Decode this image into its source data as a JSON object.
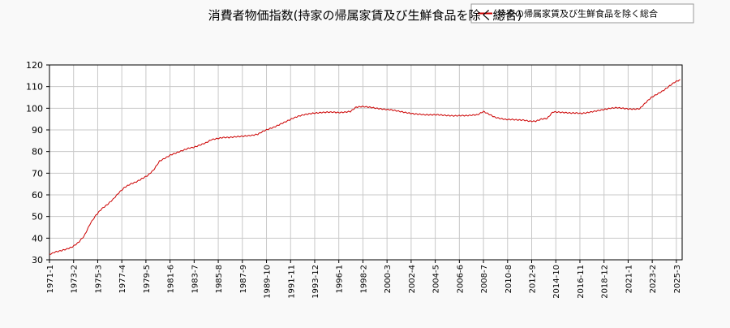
{
  "chart_data": {
    "type": "line",
    "title": "消費者物価指数(持家の帰属家賃及び生鮮食品を除く総合)",
    "xlabel": "",
    "ylabel": "",
    "ylim": [
      30,
      120
    ],
    "yticks": [
      30,
      40,
      50,
      60,
      70,
      80,
      90,
      100,
      110,
      120
    ],
    "x_tick_labels": [
      "1971-1",
      "1973-2",
      "1975-3",
      "1977-4",
      "1979-5",
      "1981-6",
      "1983-7",
      "1985-8",
      "1987-9",
      "1989-10",
      "1991-11",
      "1993-12",
      "1996-1",
      "1998-2",
      "2000-3",
      "2002-4",
      "2004-5",
      "2006-6",
      "2008-7",
      "2010-8",
      "2012-9",
      "2014-10",
      "2016-11",
      "2018-12",
      "2021-1",
      "2023-2",
      "2025-3"
    ],
    "grid": true,
    "legend_position": "top-right",
    "series": [
      {
        "name": "持家の帰属家賃及び生鮮食品を除く総合",
        "color": "#cc0000",
        "x": [
          "1971-1",
          "1971-7",
          "1972-1",
          "1972-7",
          "1973-1",
          "1973-7",
          "1974-1",
          "1974-7",
          "1975-1",
          "1975-7",
          "1976-1",
          "1976-7",
          "1977-1",
          "1977-7",
          "1978-1",
          "1978-7",
          "1979-1",
          "1979-7",
          "1980-1",
          "1980-7",
          "1981-1",
          "1981-7",
          "1982-1",
          "1982-7",
          "1983-1",
          "1983-7",
          "1984-1",
          "1984-7",
          "1985-1",
          "1985-7",
          "1986-1",
          "1986-7",
          "1987-1",
          "1987-7",
          "1988-1",
          "1988-7",
          "1989-1",
          "1989-7",
          "1990-1",
          "1990-7",
          "1991-1",
          "1991-7",
          "1992-1",
          "1992-7",
          "1993-1",
          "1993-7",
          "1994-1",
          "1994-7",
          "1995-1",
          "1995-7",
          "1996-1",
          "1996-7",
          "1997-1",
          "1997-7",
          "1998-1",
          "1998-7",
          "1999-1",
          "1999-7",
          "2000-1",
          "2000-7",
          "2001-1",
          "2001-7",
          "2002-1",
          "2002-7",
          "2003-1",
          "2003-7",
          "2004-1",
          "2004-7",
          "2005-1",
          "2005-7",
          "2006-1",
          "2006-7",
          "2007-1",
          "2007-7",
          "2008-1",
          "2008-7",
          "2009-1",
          "2009-7",
          "2010-1",
          "2010-7",
          "2011-1",
          "2011-7",
          "2012-1",
          "2012-7",
          "2013-1",
          "2013-7",
          "2014-1",
          "2014-7",
          "2015-1",
          "2015-7",
          "2016-1",
          "2016-7",
          "2017-1",
          "2017-7",
          "2018-1",
          "2018-7",
          "2019-1",
          "2019-7",
          "2020-1",
          "2020-7",
          "2021-1",
          "2021-7",
          "2022-1",
          "2022-7",
          "2023-1",
          "2023-7",
          "2024-1",
          "2024-7",
          "2025-1",
          "2025-7"
        ],
        "values": [
          32.5,
          33.6,
          34.2,
          35.0,
          36.0,
          38.0,
          41.0,
          46.5,
          50.5,
          53.5,
          55.5,
          58.0,
          61.0,
          63.5,
          65.0,
          66.0,
          67.5,
          69.0,
          71.5,
          75.5,
          77.0,
          78.5,
          79.5,
          80.5,
          81.5,
          82.0,
          83.0,
          84.0,
          85.5,
          86.0,
          86.5,
          86.5,
          86.8,
          87.0,
          87.2,
          87.5,
          88.0,
          89.5,
          90.5,
          91.5,
          92.8,
          94.0,
          95.3,
          96.3,
          97.0,
          97.5,
          97.8,
          98.0,
          98.2,
          98.2,
          98.0,
          98.2,
          98.5,
          100.5,
          100.8,
          100.6,
          100.2,
          99.8,
          99.5,
          99.3,
          98.8,
          98.3,
          97.8,
          97.4,
          97.2,
          97.0,
          97.0,
          97.0,
          96.8,
          96.6,
          96.5,
          96.6,
          96.6,
          96.8,
          97.0,
          98.5,
          97.2,
          95.8,
          95.2,
          94.8,
          94.8,
          94.6,
          94.5,
          94.0,
          94.0,
          95.0,
          95.3,
          98.3,
          98.2,
          98.0,
          97.8,
          97.8,
          97.6,
          98.0,
          98.5,
          99.0,
          99.5,
          100.0,
          100.3,
          100.0,
          99.7,
          99.6,
          99.8,
          102.5,
          105.0,
          106.5,
          108.0,
          110.0,
          112.0,
          113.2
        ]
      }
    ]
  }
}
